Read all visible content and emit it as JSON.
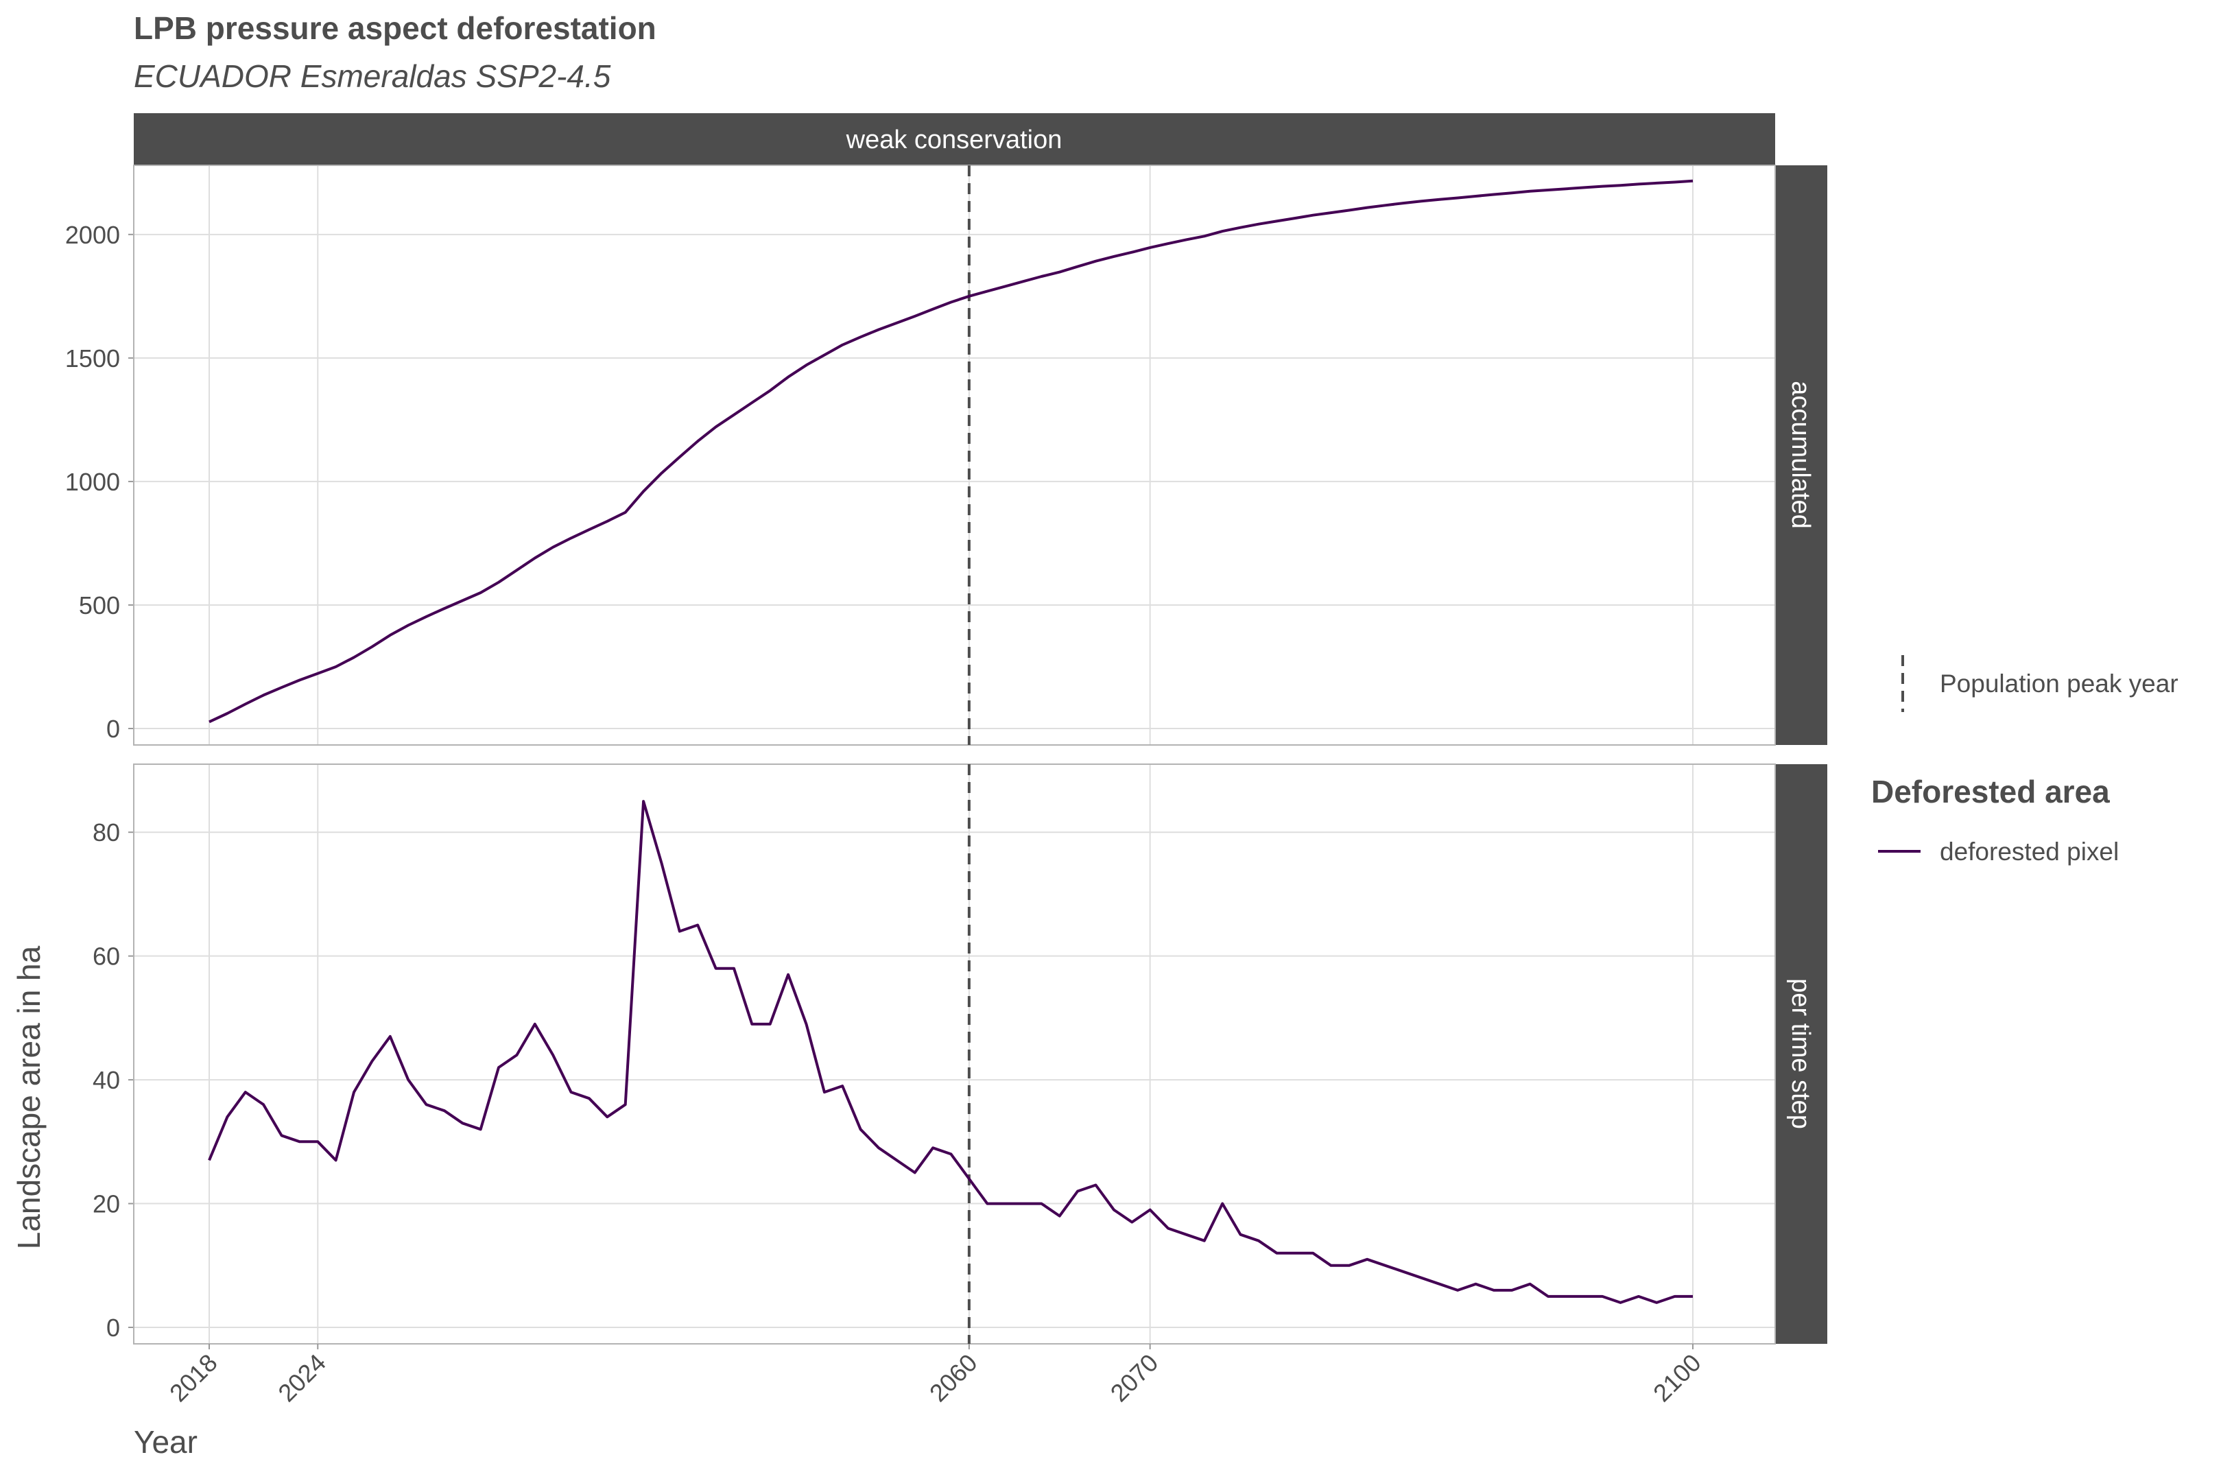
{
  "chart_data": {
    "type": "line",
    "title": "LPB pressure aspect deforestation",
    "subtitle": "ECUADOR Esmeraldas SSP2-4.5",
    "column_facet": "weak conservation",
    "xlabel": "Year",
    "ylabel": "Landscape area in ha",
    "x_ticks": [
      2018,
      2024,
      2060,
      2070,
      2100
    ],
    "xlim": [
      2018,
      2100
    ],
    "grid": true,
    "peak_year": 2060,
    "panels": [
      {
        "facet": "accumulated",
        "ylim": [
          0,
          2230
        ],
        "y_ticks": [
          0,
          500,
          1000,
          1500,
          2000
        ],
        "series": [
          {
            "name": "deforested pixel",
            "color": "#440154",
            "x": [
              2018,
              2019,
              2020,
              2021,
              2022,
              2023,
              2024,
              2025,
              2026,
              2027,
              2028,
              2029,
              2030,
              2031,
              2032,
              2033,
              2034,
              2035,
              2036,
              2037,
              2038,
              2039,
              2040,
              2041,
              2042,
              2043,
              2044,
              2045,
              2046,
              2047,
              2048,
              2049,
              2050,
              2051,
              2052,
              2053,
              2054,
              2055,
              2056,
              2057,
              2058,
              2059,
              2060,
              2061,
              2062,
              2063,
              2064,
              2065,
              2066,
              2067,
              2068,
              2069,
              2070,
              2071,
              2072,
              2073,
              2074,
              2075,
              2076,
              2077,
              2078,
              2079,
              2080,
              2081,
              2082,
              2083,
              2084,
              2085,
              2086,
              2087,
              2088,
              2089,
              2090,
              2091,
              2092,
              2093,
              2094,
              2095,
              2096,
              2097,
              2098,
              2099,
              2100
            ],
            "y": [
              27,
              61,
              99,
              135,
              166,
              196,
              223,
              250,
              288,
              331,
              378,
              418,
              453,
              486,
              518,
              550,
              592,
              641,
              690,
              734,
              771,
              805,
              839,
              875,
              960,
              1034,
              1099,
              1163,
              1221,
              1270,
              1319,
              1368,
              1423,
              1471,
              1512,
              1553,
              1585,
              1615,
              1642,
              1669,
              1698,
              1726,
              1750,
              1770,
              1790,
              1810,
              1830,
              1848,
              1870,
              1892,
              1911,
              1928,
              1947,
              1963,
              1979,
              1993,
              2013,
              2028,
              2042,
              2054,
              2066,
              2078,
              2088,
              2098,
              2109,
              2118,
              2127,
              2135,
              2142,
              2148,
              2155,
              2162,
              2168,
              2175,
              2180,
              2185,
              2190,
              2195,
              2199,
              2204,
              2208,
              2212,
              2217
            ]
          }
        ]
      },
      {
        "facet": "per time step",
        "ylim": [
          0,
          89
        ],
        "y_ticks": [
          0,
          20,
          40,
          60,
          80
        ],
        "series": [
          {
            "name": "deforested pixel",
            "color": "#440154",
            "x": [
              2018,
              2019,
              2020,
              2021,
              2022,
              2023,
              2024,
              2025,
              2026,
              2027,
              2028,
              2029,
              2030,
              2031,
              2032,
              2033,
              2034,
              2035,
              2036,
              2037,
              2038,
              2039,
              2040,
              2041,
              2042,
              2043,
              2044,
              2045,
              2046,
              2047,
              2048,
              2049,
              2050,
              2051,
              2052,
              2053,
              2054,
              2055,
              2056,
              2057,
              2058,
              2059,
              2060,
              2061,
              2062,
              2063,
              2064,
              2065,
              2066,
              2067,
              2068,
              2069,
              2070,
              2071,
              2072,
              2073,
              2074,
              2075,
              2076,
              2077,
              2078,
              2079,
              2080,
              2081,
              2082,
              2083,
              2084,
              2085,
              2086,
              2087,
              2088,
              2089,
              2090,
              2091,
              2092,
              2093,
              2094,
              2095,
              2096,
              2097,
              2098,
              2099,
              2100
            ],
            "y": [
              27,
              34,
              38,
              36,
              31,
              30,
              30,
              27,
              38,
              43,
              47,
              40,
              36,
              35,
              33,
              32,
              42,
              44,
              49,
              44,
              38,
              37,
              34,
              36,
              85,
              75,
              64,
              65,
              58,
              58,
              49,
              49,
              57,
              49,
              38,
              39,
              32,
              29,
              27,
              25,
              29,
              28,
              24,
              20,
              20,
              20,
              20,
              18,
              22,
              23,
              19,
              17,
              19,
              16,
              15,
              14,
              20,
              15,
              14,
              12,
              12,
              12,
              10,
              10,
              11,
              10,
              9,
              8,
              7,
              6,
              7,
              6,
              6,
              7,
              5,
              5,
              5,
              5,
              4,
              5,
              4,
              5,
              5
            ]
          }
        ]
      }
    ],
    "legend": {
      "line_type_label": "Population peak year",
      "title": "Deforested area",
      "entries": [
        "deforested pixel"
      ],
      "position": "right"
    }
  }
}
